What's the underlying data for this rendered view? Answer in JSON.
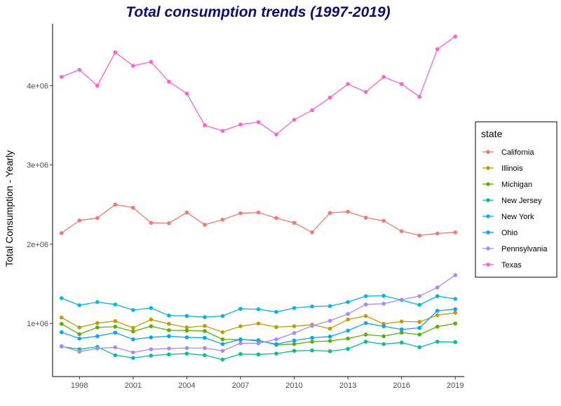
{
  "chart_data": {
    "type": "line",
    "title": "Total consumption trends (1997-2019)",
    "title_color": "#0d0d73",
    "xlabel": "",
    "ylabel": "Total Consumption - Yearly",
    "x": [
      1997,
      1998,
      1999,
      2000,
      2001,
      2002,
      2003,
      2004,
      2005,
      2006,
      2007,
      2008,
      2009,
      2010,
      2011,
      2012,
      2013,
      2014,
      2015,
      2016,
      2017,
      2018,
      2019
    ],
    "xlim": [
      1996.5,
      2019.5
    ],
    "ylim": [
      330000,
      4780000
    ],
    "x_ticks": [
      1998,
      2001,
      2004,
      2007,
      2010,
      2013,
      2016,
      2019
    ],
    "x_tick_labels": [
      "1998",
      "2001",
      "2004",
      "2007",
      "2010",
      "2013",
      "2016",
      "2019"
    ],
    "y_ticks": [
      1000000,
      2000000,
      3000000,
      4000000
    ],
    "y_tick_labels": [
      "1e+06",
      "2e+06",
      "3e+06",
      "4e+06"
    ],
    "grid": false,
    "legend": {
      "title": "state",
      "position": "right"
    },
    "series": [
      {
        "name": "California",
        "color": "#F8766D",
        "values": [
          2140000,
          2300000,
          2330000,
          2500000,
          2460000,
          2270000,
          2265000,
          2400000,
          2245000,
          2310000,
          2390000,
          2400000,
          2330000,
          2270000,
          2150000,
          2395000,
          2410000,
          2335000,
          2295000,
          2165000,
          2110000,
          2135000,
          2150000
        ]
      },
      {
        "name": "Illinois",
        "color": "#C49A00",
        "values": [
          1075000,
          950000,
          1005000,
          1030000,
          945000,
          1050000,
          995000,
          950000,
          970000,
          890000,
          965000,
          1000000,
          955000,
          965000,
          985000,
          935000,
          1050000,
          1095000,
          995000,
          1025000,
          1020000,
          1105000,
          1135000
        ]
      },
      {
        "name": "Michigan",
        "color": "#53B400",
        "values": [
          995000,
          865000,
          950000,
          960000,
          900000,
          965000,
          915000,
          910000,
          905000,
          800000,
          795000,
          790000,
          730000,
          740000,
          770000,
          780000,
          810000,
          860000,
          840000,
          885000,
          860000,
          960000,
          1000000
        ]
      },
      {
        "name": "New Jersey",
        "color": "#00C094",
        "values": [
          710000,
          675000,
          705000,
          600000,
          565000,
          595000,
          610000,
          620000,
          600000,
          545000,
          615000,
          610000,
          620000,
          655000,
          660000,
          650000,
          680000,
          770000,
          740000,
          760000,
          700000,
          770000,
          765000
        ]
      },
      {
        "name": "New York",
        "color": "#00B6EB",
        "values": [
          1320000,
          1230000,
          1270000,
          1240000,
          1170000,
          1195000,
          1100000,
          1095000,
          1080000,
          1095000,
          1185000,
          1180000,
          1145000,
          1195000,
          1215000,
          1220000,
          1270000,
          1345000,
          1350000,
          1295000,
          1235000,
          1345000,
          1310000
        ]
      },
      {
        "name": "Ohio",
        "color": "#06A4FF",
        "values": [
          890000,
          810000,
          840000,
          885000,
          800000,
          825000,
          840000,
          825000,
          820000,
          740000,
          800000,
          780000,
          740000,
          785000,
          820000,
          835000,
          910000,
          1005000,
          965000,
          925000,
          945000,
          1160000,
          1180000
        ]
      },
      {
        "name": "Pennsylvania",
        "color": "#A58AFF",
        "values": [
          715000,
          645000,
          685000,
          700000,
          635000,
          675000,
          685000,
          690000,
          690000,
          655000,
          750000,
          750000,
          800000,
          880000,
          970000,
          1035000,
          1120000,
          1240000,
          1250000,
          1300000,
          1345000,
          1455000,
          1610000
        ]
      },
      {
        "name": "Texas",
        "color": "#FB61D7",
        "values": [
          4110000,
          4200000,
          4000000,
          4420000,
          4250000,
          4300000,
          4050000,
          3900000,
          3500000,
          3430000,
          3510000,
          3540000,
          3385000,
          3570000,
          3690000,
          3850000,
          4020000,
          3920000,
          4110000,
          4020000,
          3860000,
          4460000,
          4620000
        ]
      }
    ]
  }
}
